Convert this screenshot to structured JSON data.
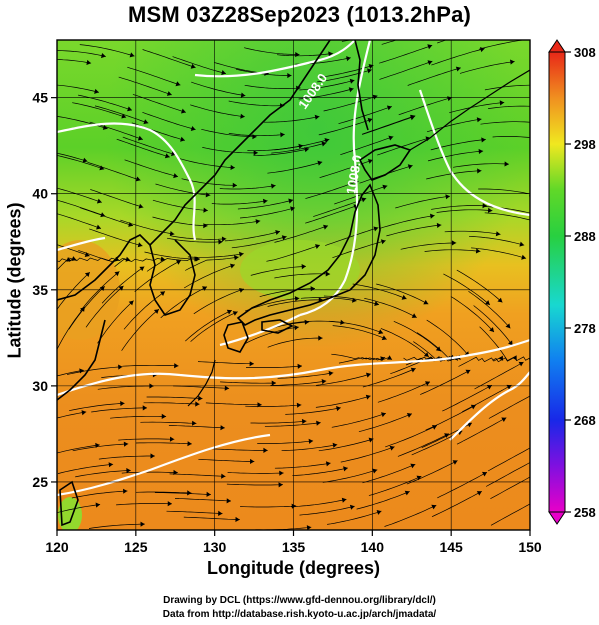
{
  "title": "MSM 03Z28Sep2023 (1013.2hPa)",
  "axes": {
    "xlabel": "Longitude (degrees)",
    "ylabel": "Latitude  (degrees)",
    "xticks": [
      "120",
      "125",
      "130",
      "135",
      "140",
      "145",
      "150"
    ],
    "yticks": [
      "25",
      "30",
      "35",
      "40",
      "45"
    ]
  },
  "colorbar": {
    "ticks": [
      "308",
      "298",
      "288",
      "278",
      "268",
      "258"
    ],
    "range": [
      258,
      308
    ]
  },
  "contour_labels": [
    "1008.0",
    "1008.0"
  ],
  "credits": {
    "line1": "Drawing by DCL (https://www.gfd-dennou.org/library/dcl/)",
    "line2": "Data from http://database.rish.kyoto-u.ac.jp/arch/jmadata/"
  },
  "colors": {
    "warm": "#e8901e",
    "mid": "#f0c020",
    "cool": "#5ad028",
    "contour": "#ffffff",
    "coast": "#000000"
  }
}
